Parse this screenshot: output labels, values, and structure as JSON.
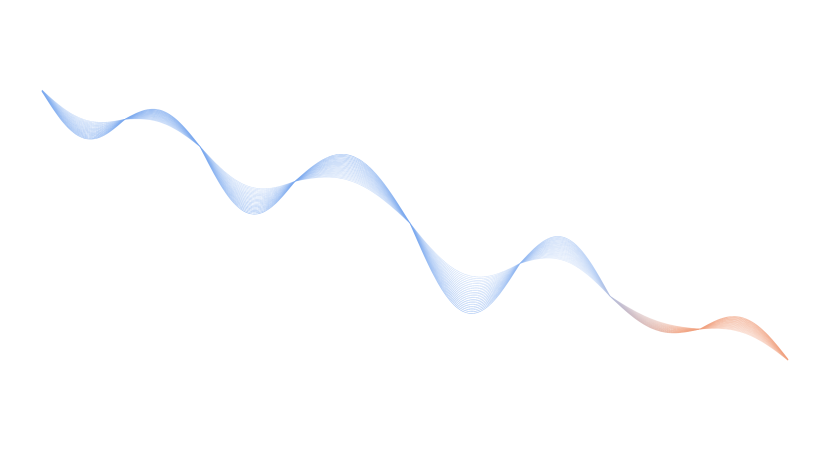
{
  "artwork": {
    "kind": "decorative-line-wave",
    "colors": {
      "background": "#ffffff",
      "primary": "#7aa8ee",
      "mid": "#a9c6f3",
      "accent": "#f0a07e"
    }
  }
}
